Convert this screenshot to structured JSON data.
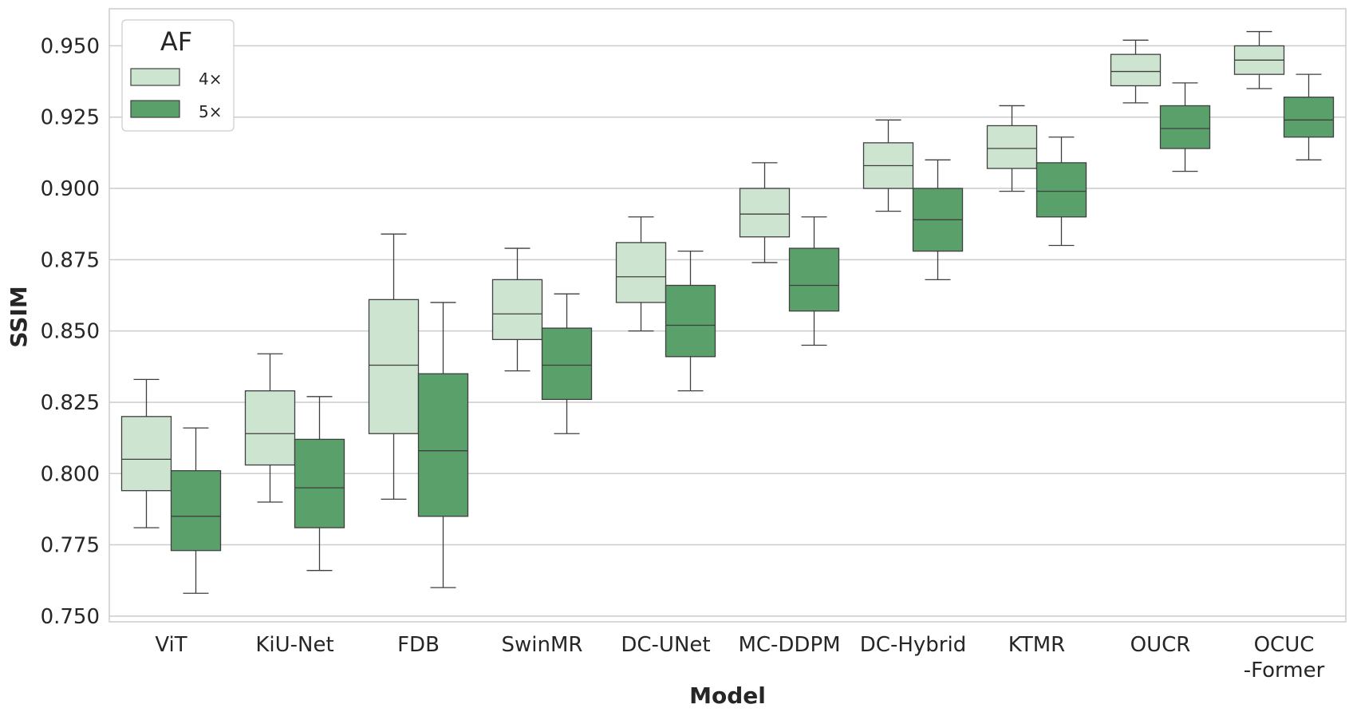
{
  "chart_data": {
    "type": "box",
    "xlabel": "Model",
    "ylabel": "SSIM",
    "ylim": [
      0.748,
      0.963
    ],
    "yticks": [
      "0.750",
      "0.775",
      "0.800",
      "0.825",
      "0.850",
      "0.875",
      "0.900",
      "0.925",
      "0.950"
    ],
    "grid": "horizontal",
    "legend": {
      "title": "AF",
      "placement": "top-left",
      "entries": [
        {
          "label": "4×",
          "color": "#cde5d0"
        },
        {
          "label": "5×",
          "color": "#5aa06b"
        }
      ]
    },
    "categories": [
      [
        "ViT"
      ],
      [
        "KiU-Net"
      ],
      [
        "FDB"
      ],
      [
        "SwinMR"
      ],
      [
        "DC-UNet"
      ],
      [
        "MC-DDPM"
      ],
      [
        "DC-Hybrid"
      ],
      [
        "KTMR"
      ],
      [
        "OUCR"
      ],
      [
        "OCUC",
        "-Former"
      ]
    ],
    "series": [
      {
        "name": "4×",
        "color": "#cde5d0",
        "boxes": [
          {
            "min": 0.781,
            "q1": 0.794,
            "median": 0.805,
            "q3": 0.82,
            "max": 0.833
          },
          {
            "min": 0.79,
            "q1": 0.803,
            "median": 0.814,
            "q3": 0.829,
            "max": 0.842
          },
          {
            "min": 0.791,
            "q1": 0.814,
            "median": 0.838,
            "q3": 0.861,
            "max": 0.884
          },
          {
            "min": 0.836,
            "q1": 0.847,
            "median": 0.856,
            "q3": 0.868,
            "max": 0.879
          },
          {
            "min": 0.85,
            "q1": 0.86,
            "median": 0.869,
            "q3": 0.881,
            "max": 0.89
          },
          {
            "min": 0.874,
            "q1": 0.883,
            "median": 0.891,
            "q3": 0.9,
            "max": 0.909
          },
          {
            "min": 0.892,
            "q1": 0.9,
            "median": 0.908,
            "q3": 0.916,
            "max": 0.924
          },
          {
            "min": 0.899,
            "q1": 0.907,
            "median": 0.914,
            "q3": 0.922,
            "max": 0.929
          },
          {
            "min": 0.93,
            "q1": 0.936,
            "median": 0.941,
            "q3": 0.947,
            "max": 0.952
          },
          {
            "min": 0.935,
            "q1": 0.94,
            "median": 0.945,
            "q3": 0.95,
            "max": 0.955
          }
        ]
      },
      {
        "name": "5×",
        "color": "#5aa06b",
        "boxes": [
          {
            "min": 0.758,
            "q1": 0.773,
            "median": 0.785,
            "q3": 0.801,
            "max": 0.816
          },
          {
            "min": 0.766,
            "q1": 0.781,
            "median": 0.795,
            "q3": 0.812,
            "max": 0.827
          },
          {
            "min": 0.76,
            "q1": 0.785,
            "median": 0.808,
            "q3": 0.835,
            "max": 0.86
          },
          {
            "min": 0.814,
            "q1": 0.826,
            "median": 0.838,
            "q3": 0.851,
            "max": 0.863
          },
          {
            "min": 0.829,
            "q1": 0.841,
            "median": 0.852,
            "q3": 0.866,
            "max": 0.878
          },
          {
            "min": 0.845,
            "q1": 0.857,
            "median": 0.866,
            "q3": 0.879,
            "max": 0.89
          },
          {
            "min": 0.868,
            "q1": 0.878,
            "median": 0.889,
            "q3": 0.9,
            "max": 0.91
          },
          {
            "min": 0.88,
            "q1": 0.89,
            "median": 0.899,
            "q3": 0.909,
            "max": 0.918
          },
          {
            "min": 0.906,
            "q1": 0.914,
            "median": 0.921,
            "q3": 0.929,
            "max": 0.937
          },
          {
            "min": 0.91,
            "q1": 0.918,
            "median": 0.924,
            "q3": 0.932,
            "max": 0.94
          }
        ]
      }
    ]
  }
}
